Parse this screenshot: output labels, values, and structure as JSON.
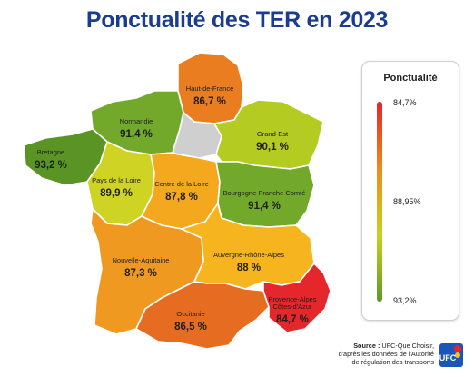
{
  "title": "Ponctualité des TER en 2023",
  "legend": {
    "title": "Ponctualité",
    "max_label": "84,7%",
    "mid_label": "88,95%",
    "min_label": "93,2%",
    "colors": [
      "#e8232a",
      "#f08a1c",
      "#c7d21e",
      "#5e9a22"
    ]
  },
  "regions": [
    {
      "id": "haut-de-france",
      "name": "Haut-de-France",
      "value": "86,7 %",
      "color": "#ea7d20"
    },
    {
      "id": "normandie",
      "name": "Normandie",
      "value": "91,4 %",
      "color": "#73a92a"
    },
    {
      "id": "ile-de-france",
      "name": "",
      "value": "",
      "color": "#cfcfcf"
    },
    {
      "id": "grand-est",
      "name": "Grand-Est",
      "value": "90,1 %",
      "color": "#b4cc22"
    },
    {
      "id": "bretagne",
      "name": "Bretagne",
      "value": "93,2 %",
      "color": "#5a9424"
    },
    {
      "id": "pays-de-la-loire",
      "name": "Pays de la Loire",
      "value": "89,9 %",
      "color": "#cfd324"
    },
    {
      "id": "centre-val-de-loire",
      "name": "Centre de la Loire",
      "value": "87,8 %",
      "color": "#f3a81e"
    },
    {
      "id": "bourgogne-franche-comte",
      "name": "Bourgogne-Franche Comté",
      "value": "91,4 %",
      "color": "#73a92a"
    },
    {
      "id": "nouvelle-aquitaine",
      "name": "Nouvelle-Aquitaine",
      "value": "87,3 %",
      "color": "#f09920"
    },
    {
      "id": "auvergne-rhone-alpes",
      "name": "Auvergne-Rhône-Alpes",
      "value": "88 %",
      "color": "#f6b51f"
    },
    {
      "id": "occitanie",
      "name": "Occitanie",
      "value": "86,5 %",
      "color": "#e66c22"
    },
    {
      "id": "provence-alpes-cote-d-azur",
      "name": "Provence-Alpes Côtes-d'Azur",
      "value": "84,7 %",
      "color": "#e5262a"
    }
  ],
  "source": {
    "label": "Source :",
    "text1": "UFC-Que Choisir,",
    "text2": "d'après les données de l'Autorité",
    "text3": "de régulation des transports"
  },
  "logo": {
    "text": "UFC"
  }
}
